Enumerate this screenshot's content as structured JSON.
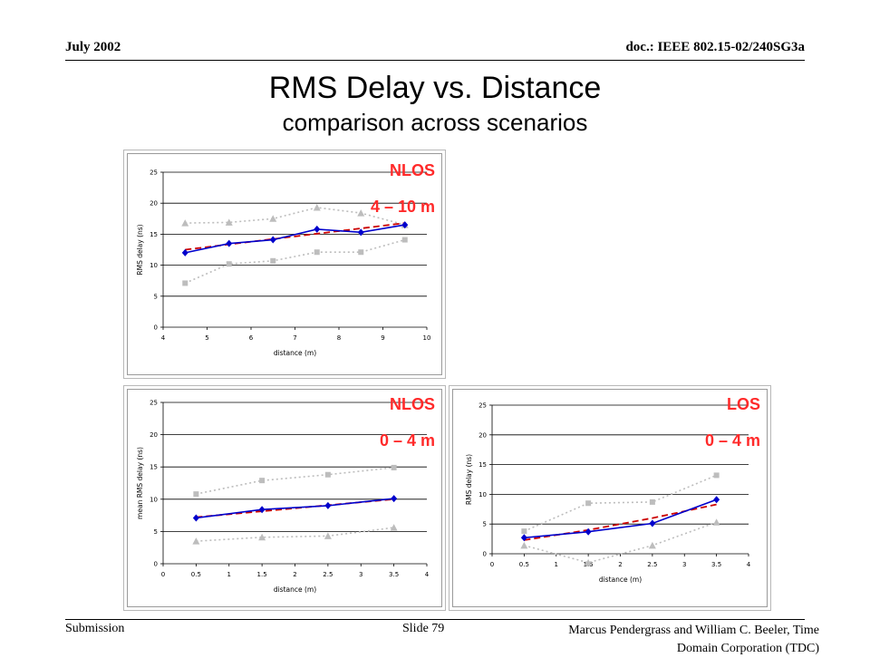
{
  "header": {
    "date": "July 2002",
    "doc": "doc.: IEEE 802.15-02/240SG3a"
  },
  "title": "RMS Delay vs. Distance",
  "subtitle": "comparison across scenarios",
  "footer": {
    "submission": "Submission",
    "slide": "Slide 79",
    "authors_line1": "Marcus Pendergrass and William  C. Beeler, Time",
    "authors_line2": "Domain Corporation (TDC)"
  },
  "colors": {
    "label_red": "#ff2a2a",
    "main_series": "#0000cc",
    "fit_series": "#cc0000",
    "band_series": "#bdbdbd"
  },
  "chart_data": [
    {
      "type": "line",
      "scenario_label": "NLOS",
      "range_label": "4 – 10 m",
      "xlabel": "distance (m)",
      "ylabel": "RMS delay (ns)",
      "xlim": [
        4,
        10
      ],
      "ylim": [
        0,
        25
      ],
      "xticks": [
        4,
        5,
        6,
        7,
        8,
        9,
        10
      ],
      "yticks": [
        0,
        5,
        10,
        15,
        20,
        25
      ],
      "grid": "horizontal",
      "series": [
        {
          "role": "mean",
          "marker": "diamond",
          "x": [
            4.5,
            5.5,
            6.5,
            7.5,
            8.5,
            9.5
          ],
          "y": [
            12.0,
            13.5,
            14.1,
            15.8,
            15.3,
            16.5
          ]
        },
        {
          "role": "fit",
          "x": [
            4.5,
            9.5
          ],
          "y": [
            12.5,
            16.8
          ]
        },
        {
          "role": "upper",
          "marker": "triangle",
          "x": [
            4.5,
            5.5,
            6.5,
            7.5,
            8.5,
            9.5
          ],
          "y": [
            16.8,
            16.9,
            17.5,
            19.3,
            18.4,
            16.5
          ]
        },
        {
          "role": "lower",
          "marker": "square",
          "x": [
            4.5,
            5.5,
            6.5,
            7.5,
            8.5,
            9.5
          ],
          "y": [
            7.1,
            10.2,
            10.7,
            12.1,
            12.1,
            14.1
          ]
        }
      ]
    },
    {
      "type": "line",
      "scenario_label": "NLOS",
      "range_label": "0 – 4 m",
      "xlabel": "distance (m)",
      "ylabel": "mean RMS delay (ns)",
      "xlim": [
        0,
        4
      ],
      "ylim": [
        0,
        25
      ],
      "xticks": [
        0,
        0.5,
        1,
        1.5,
        2,
        2.5,
        3,
        3.5,
        4
      ],
      "yticks": [
        0,
        5,
        10,
        15,
        20,
        25
      ],
      "grid": "horizontal",
      "series": [
        {
          "role": "mean",
          "marker": "diamond",
          "x": [
            0.5,
            1.5,
            2.5,
            3.5
          ],
          "y": [
            7.1,
            8.4,
            9.0,
            10.1
          ]
        },
        {
          "role": "fit",
          "x": [
            0.5,
            3.5
          ],
          "y": [
            7.2,
            10.0
          ]
        },
        {
          "role": "upper",
          "marker": "square",
          "x": [
            0.5,
            1.5,
            2.5,
            3.5
          ],
          "y": [
            10.8,
            12.9,
            13.8,
            14.9
          ]
        },
        {
          "role": "lower",
          "marker": "triangle",
          "x": [
            0.5,
            1.5,
            2.5,
            3.5
          ],
          "y": [
            3.5,
            4.1,
            4.3,
            5.6
          ]
        }
      ]
    },
    {
      "type": "line",
      "scenario_label": "LOS",
      "range_label": "0 – 4 m",
      "xlabel": "distance (m)",
      "ylabel": "RMS delay (ns)",
      "xlim": [
        0,
        4
      ],
      "ylim": [
        0,
        25
      ],
      "xticks": [
        0,
        0.5,
        1,
        1.5,
        2,
        2.5,
        3,
        3.5,
        4
      ],
      "yticks": [
        0,
        5,
        10,
        15,
        20,
        25
      ],
      "grid": "horizontal",
      "series": [
        {
          "role": "mean",
          "marker": "diamond",
          "x": [
            0.5,
            1.5,
            2.5,
            3.5
          ],
          "y": [
            2.7,
            3.7,
            5.1,
            9.1
          ]
        },
        {
          "role": "fit",
          "x": [
            0.5,
            1.5,
            2.5,
            3.5
          ],
          "y": [
            2.3,
            4.0,
            6.0,
            8.3
          ]
        },
        {
          "role": "upper",
          "marker": "square",
          "x": [
            0.5,
            1.5,
            2.5,
            3.5
          ],
          "y": [
            3.8,
            8.5,
            8.7,
            13.2
          ]
        },
        {
          "role": "lower",
          "marker": "triangle",
          "x": [
            0.5,
            1.5,
            2.5,
            3.5
          ],
          "y": [
            1.4,
            -1.5,
            1.4,
            5.3
          ]
        }
      ]
    }
  ]
}
